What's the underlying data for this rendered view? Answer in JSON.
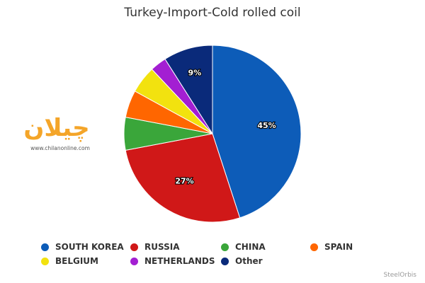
{
  "chart_data": {
    "type": "pie",
    "title": "Turkey-Import-Cold rolled coil",
    "slices": [
      {
        "name": "SOUTH KOREA",
        "value": 45,
        "label": "45%",
        "color": "#0d5cb8"
      },
      {
        "name": "RUSSIA",
        "value": 27,
        "label": "27%",
        "color": "#d01818"
      },
      {
        "name": "CHINA",
        "value": 6,
        "label": "",
        "color": "#3aa63a"
      },
      {
        "name": "SPAIN",
        "value": 5,
        "label": "",
        "color": "#ff6600"
      },
      {
        "name": "BELGIUM",
        "value": 5,
        "label": "",
        "color": "#f2e20f"
      },
      {
        "name": "NETHERLANDS",
        "value": 3,
        "label": "",
        "color": "#a31fd2"
      },
      {
        "name": "Other",
        "value": 9,
        "label": "9%",
        "color": "#0a2a7a"
      }
    ],
    "legend_position": "bottom"
  },
  "watermark": {
    "logo_text": "چیلان",
    "url": "www.chilanonline.com"
  },
  "credit": "SteelOrbis"
}
